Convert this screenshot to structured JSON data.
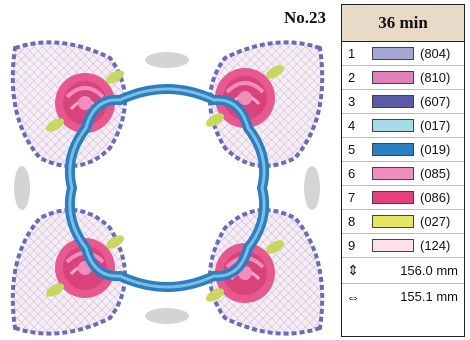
{
  "design": {
    "label": "No.23"
  },
  "panel": {
    "time": "36 min",
    "colors": [
      {
        "num": "1",
        "code": "(804)",
        "swatch": "#a6a6d4"
      },
      {
        "num": "2",
        "code": "(810)",
        "swatch": "#e07fb8"
      },
      {
        "num": "3",
        "code": "(607)",
        "swatch": "#5a5aa6"
      },
      {
        "num": "4",
        "code": "(017)",
        "swatch": "#a7dbe8"
      },
      {
        "num": "5",
        "code": "(019)",
        "swatch": "#2b7fc0"
      },
      {
        "num": "6",
        "code": "(085)",
        "swatch": "#f08cbe"
      },
      {
        "num": "7",
        "code": "(086)",
        "swatch": "#e8407e"
      },
      {
        "num": "8",
        "code": "(027)",
        "swatch": "#e3e662"
      },
      {
        "num": "9",
        "code": "(124)",
        "swatch": "#fde0e8"
      }
    ],
    "height": {
      "icon": "⇕",
      "value": "156.0 mm"
    },
    "width": {
      "icon": "⇔",
      "value": "155.1 mm"
    }
  }
}
